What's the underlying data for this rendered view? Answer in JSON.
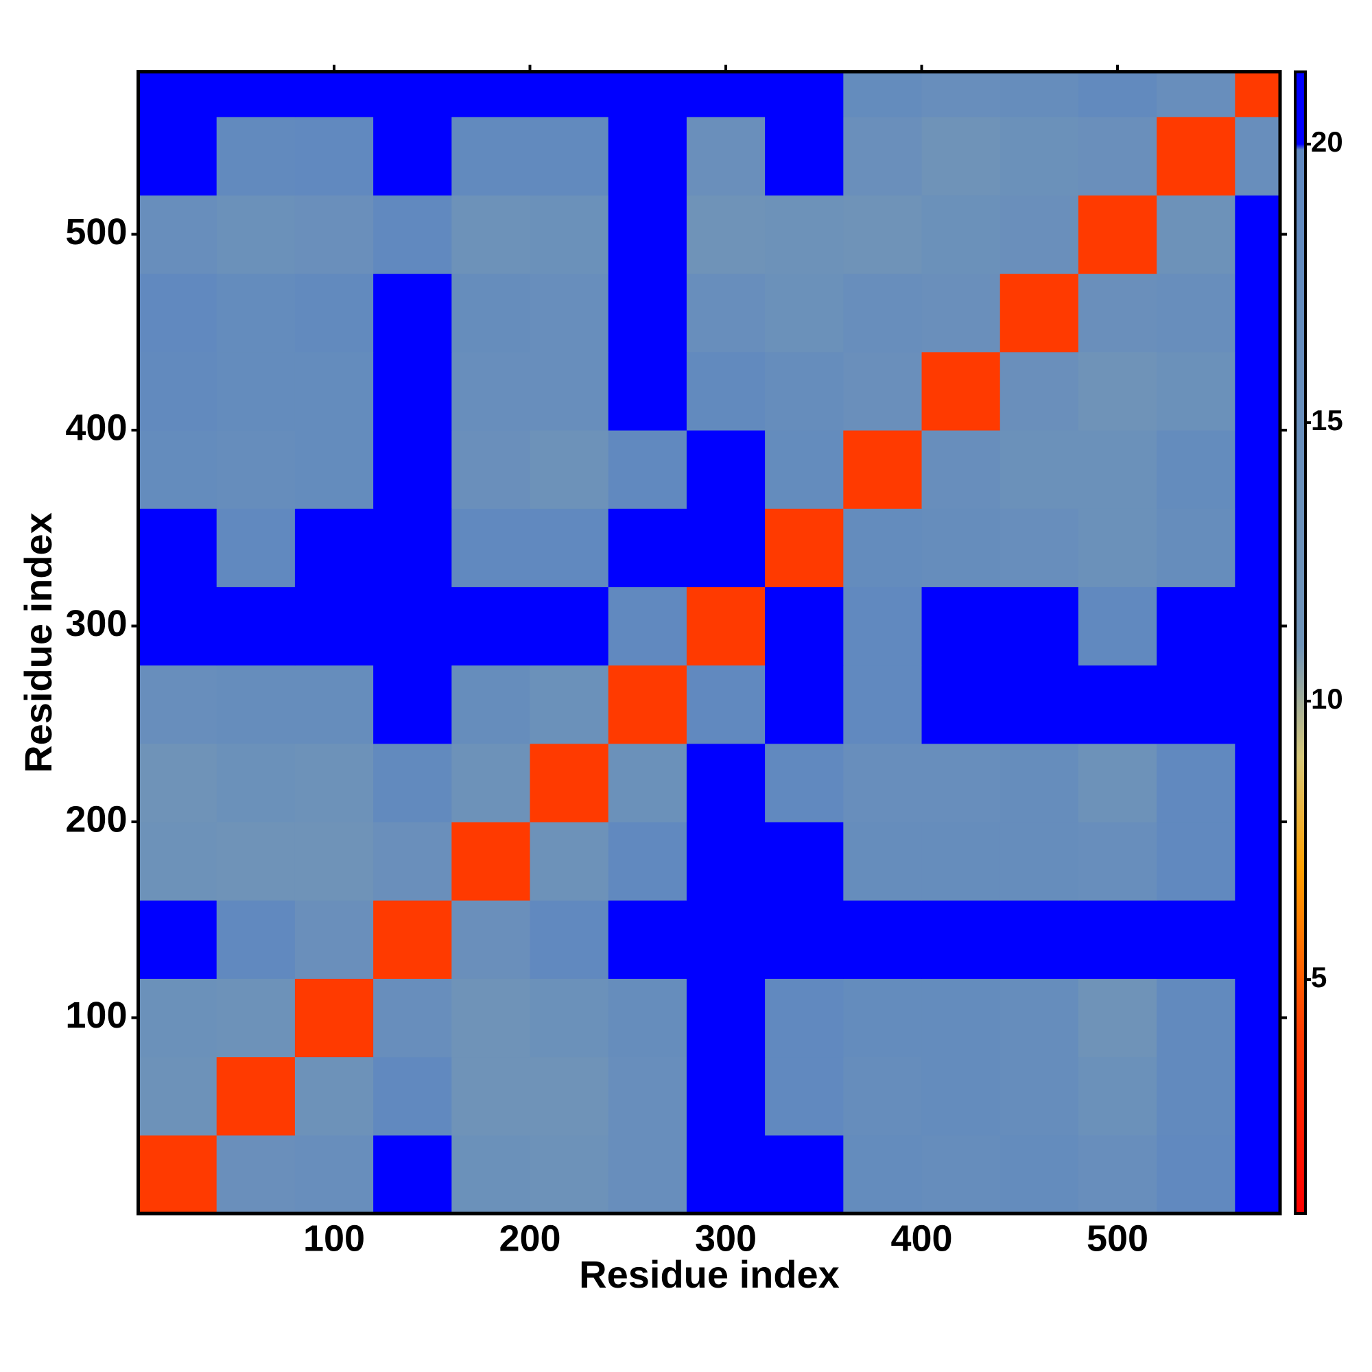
{
  "chart_data": {
    "type": "heatmap",
    "x_label": "Residue index",
    "y_label": "Residue index",
    "x_bins": [
      0,
      40,
      80,
      120,
      160,
      200,
      240,
      280,
      320,
      360,
      400,
      440,
      480,
      520,
      560,
      583
    ],
    "y_bins": [
      0,
      40,
      80,
      120,
      160,
      200,
      240,
      280,
      320,
      360,
      400,
      440,
      480,
      520,
      560,
      583
    ],
    "values": [
      [
        4,
        14,
        15,
        20,
        13,
        12,
        15,
        21,
        20,
        17,
        16,
        17,
        15,
        19,
        21
      ],
      [
        12,
        4,
        12,
        19,
        11,
        11,
        15,
        21,
        19,
        16,
        17,
        16,
        13,
        18,
        21
      ],
      [
        13,
        12,
        4,
        15,
        11,
        13,
        16,
        21,
        19,
        17,
        17,
        16,
        11,
        18,
        21
      ],
      [
        20,
        19,
        14,
        4,
        14,
        19,
        21,
        21,
        21,
        21,
        21,
        21,
        21,
        21,
        21
      ],
      [
        12,
        11,
        11,
        14,
        4,
        12,
        19,
        21,
        20,
        16,
        16,
        16,
        15,
        19,
        21
      ],
      [
        11,
        13,
        12,
        18,
        12,
        4,
        13,
        21,
        19,
        15,
        15,
        16,
        12,
        19,
        21
      ],
      [
        15,
        16,
        16,
        21,
        16,
        13,
        4,
        19,
        21,
        19,
        21,
        21,
        21,
        21,
        21
      ],
      [
        21,
        21,
        21,
        21,
        21,
        20,
        19,
        4,
        21,
        19,
        21,
        21,
        19,
        21,
        21
      ],
      [
        20,
        19,
        20,
        21,
        19,
        19,
        21,
        20,
        4,
        17,
        16,
        15,
        13,
        16,
        21
      ],
      [
        17,
        16,
        17,
        20,
        14,
        12,
        19,
        21,
        17,
        4,
        15,
        13,
        13,
        17,
        21
      ],
      [
        18,
        17,
        17,
        20,
        15,
        15,
        21,
        18,
        16,
        14,
        4,
        14,
        11,
        13,
        21
      ],
      [
        19,
        17,
        18,
        20,
        16,
        15,
        21,
        15,
        13,
        15,
        14,
        4,
        14,
        15,
        21
      ],
      [
        15,
        13,
        14,
        19,
        12,
        13,
        21,
        11,
        12,
        11,
        13,
        14,
        4,
        12,
        21
      ],
      [
        20,
        18,
        19,
        20,
        18,
        18,
        21,
        14,
        20,
        14,
        11,
        13,
        14,
        4,
        15
      ],
      [
        21,
        21,
        21,
        21,
        21,
        21,
        21,
        20,
        21,
        17,
        15,
        16,
        18,
        15,
        4
      ]
    ],
    "xlim": [
      0,
      583
    ],
    "ylim": [
      0,
      583
    ],
    "xticks": [
      100,
      200,
      300,
      400,
      500
    ],
    "yticks": [
      100,
      200,
      300,
      400,
      500
    ],
    "clim": [
      0.8,
      21.3
    ],
    "cticks": [
      5,
      10,
      15,
      20
    ],
    "colorscale": [
      {
        "value": 0.8,
        "color": "#ff0000"
      },
      {
        "value": 4,
        "color": "#ff3a00"
      },
      {
        "value": 7,
        "color": "#ffa000"
      },
      {
        "value": 9,
        "color": "#d6c87a"
      },
      {
        "value": 11,
        "color": "#6f93b8"
      },
      {
        "value": 19.9,
        "color": "#5f88c0"
      },
      {
        "value": 20,
        "color": "#0000ff"
      },
      {
        "value": 21.3,
        "color": "#0000ff"
      }
    ]
  }
}
